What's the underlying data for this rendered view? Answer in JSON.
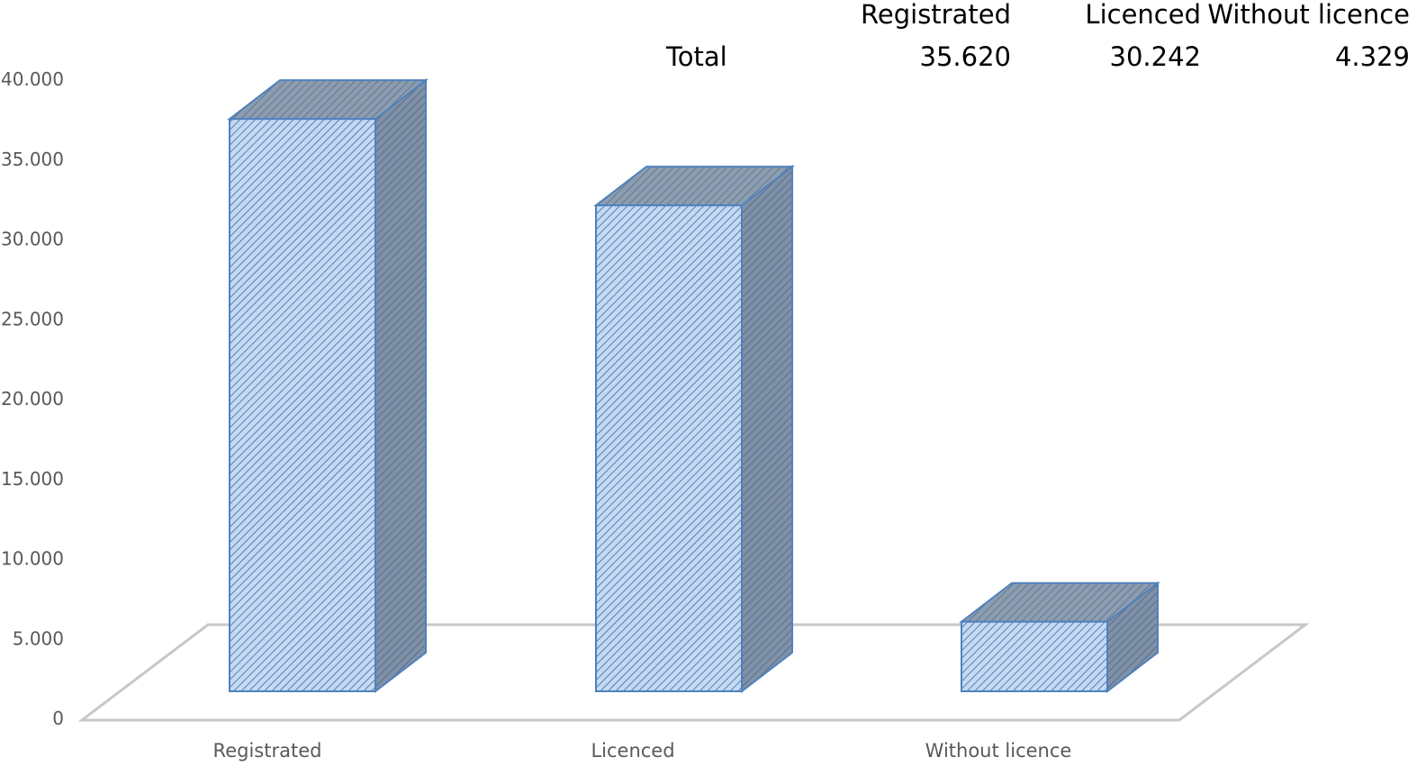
{
  "chart_data": {
    "type": "bar",
    "title": "",
    "xlabel": "",
    "ylabel": "",
    "categories": [
      "Registrated",
      "Licenced",
      "Without licence"
    ],
    "values": [
      35620,
      30242,
      4329
    ],
    "ylim": [
      0,
      40000
    ],
    "y_ticks": [
      "0",
      "5.000",
      "10.000",
      "15.000",
      "20.000",
      "25.000",
      "30.000",
      "35.000",
      "40.000"
    ],
    "style": "3d-column",
    "grid": false,
    "legend": "none",
    "colors": {
      "front": "#c6d9f1",
      "front_hatch": "#4f81bd",
      "side": "#6f8299",
      "outline": "#4f81bd",
      "floor": "#c8c8c8"
    },
    "data_table": {
      "row_label": "Total",
      "headers": [
        "Registrated",
        "Licenced",
        "Without licence"
      ],
      "values": [
        "35.620",
        "30.242",
        "4.329"
      ]
    }
  }
}
